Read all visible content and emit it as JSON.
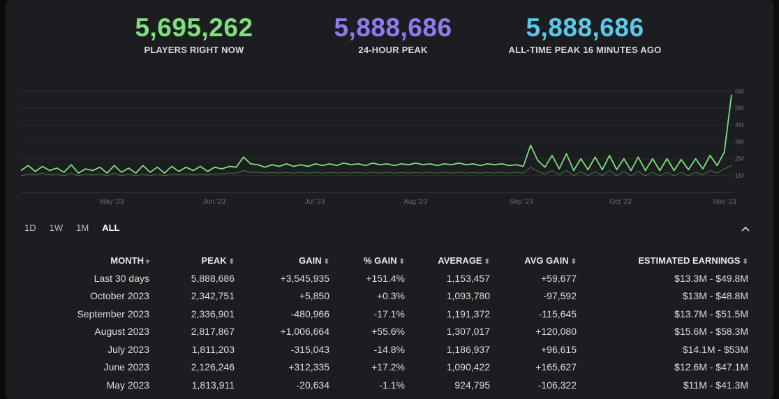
{
  "stats": [
    {
      "value": "5,695,262",
      "label": "PLAYERS RIGHT NOW",
      "color": "#7ee07c"
    },
    {
      "value": "5,888,686",
      "label": "24-HOUR PEAK",
      "color": "#8f7bf0"
    },
    {
      "value": "5,888,686",
      "label": "ALL-TIME PEAK 16 MINUTES AGO",
      "color": "#5cc8ea"
    }
  ],
  "chart_data": {
    "type": "line",
    "y_ticks": [
      "6M",
      "5M",
      "4M",
      "3M",
      "2M",
      "1M"
    ],
    "x_ticks": [
      "May '23",
      "Jun '23",
      "Jul '23",
      "Aug '23",
      "Sep '23",
      "Oct '23",
      "Nov '23"
    ],
    "ylim": [
      0,
      6200000
    ],
    "grid": true,
    "line_color": "#7ee07c",
    "series": [
      {
        "values": [
          1300000,
          1600000,
          1250000,
          1550000,
          1300000,
          1450000,
          1200000,
          1650000,
          1150000,
          1400000,
          1300000,
          1500000,
          1150000,
          1600000,
          1200000,
          1450000,
          1150000,
          1600000,
          1200000,
          1500000,
          1150000,
          1550000,
          1250000,
          1500000,
          1300000,
          1550000,
          1250000,
          1500000,
          1400000,
          1550000,
          1500000,
          2100000,
          1700000,
          1650000,
          1500000,
          1650000,
          1550000,
          1700000,
          1550000,
          1650000,
          1550000,
          1700000,
          1600000,
          1700000,
          1600000,
          1750000,
          1650000,
          1700000,
          1600000,
          1750000,
          1650000,
          1700000,
          1600000,
          1700000,
          1650000,
          1750000,
          1650000,
          1700000,
          1600000,
          1700000,
          1650000,
          1750000,
          1650000,
          1700000,
          1600000,
          1700000,
          1650000,
          1700000,
          1600000,
          1650000,
          1550000,
          2800000,
          1900000,
          1500000,
          2200000,
          1400000,
          2300000,
          1300000,
          2000000,
          1350000,
          2100000,
          1350000,
          2200000,
          1350000,
          2000000,
          1300000,
          2100000,
          1300000,
          2000000,
          1300000,
          2000000,
          1300000,
          1950000,
          1350000,
          2000000,
          1400000,
          2200000,
          1600000,
          2400000,
          5800000
        ]
      },
      {
        "values": [
          1000000,
          1100000,
          1050000,
          1150000,
          1050000,
          1100000,
          1000000,
          1150000,
          1000000,
          1100000,
          1050000,
          1100000,
          1000000,
          1150000,
          1000000,
          1100000,
          1000000,
          1100000,
          1000000,
          1100000,
          1000000,
          1100000,
          1050000,
          1100000,
          1050000,
          1100000,
          1050000,
          1100000,
          1100000,
          1150000,
          1150000,
          1300000,
          1200000,
          1200000,
          1150000,
          1200000,
          1150000,
          1200000,
          1150000,
          1200000,
          1150000,
          1200000,
          1150000,
          1200000,
          1150000,
          1200000,
          1150000,
          1200000,
          1150000,
          1200000,
          1150000,
          1200000,
          1150000,
          1200000,
          1150000,
          1200000,
          1150000,
          1200000,
          1150000,
          1200000,
          1150000,
          1200000,
          1150000,
          1200000,
          1150000,
          1200000,
          1150000,
          1200000,
          1150000,
          1200000,
          1150000,
          1500000,
          1250000,
          1100000,
          1300000,
          1050000,
          1300000,
          1000000,
          1250000,
          1000000,
          1250000,
          1000000,
          1300000,
          1000000,
          1250000,
          1000000,
          1250000,
          1000000,
          1200000,
          1000000,
          1200000,
          1000000,
          1200000,
          1000000,
          1200000,
          1050000,
          1300000,
          1150000,
          1400000,
          1600000
        ]
      }
    ]
  },
  "ranges": [
    "1D",
    "1W",
    "1M",
    "ALL"
  ],
  "active_range": "ALL",
  "table": {
    "headers": [
      "MONTH",
      "PEAK",
      "GAIN",
      "% GAIN",
      "AVERAGE",
      "AVG GAIN",
      "ESTIMATED EARNINGS"
    ],
    "rows": [
      {
        "month": "Last 30 days",
        "peak": "5,888,686",
        "gain": "+3,545,935",
        "gain_sign": "pos",
        "pct": "+151.4%",
        "pct_sign": "pos",
        "avg": "1,153,457",
        "avg_gain": "+59,677",
        "avg_gain_sign": "pos",
        "earnings": "$13.3M - $49.8M"
      },
      {
        "month": "October 2023",
        "peak": "2,342,751",
        "gain": "+5,850",
        "gain_sign": "pos",
        "pct": "+0.3%",
        "pct_sign": "pos",
        "avg": "1,093,780",
        "avg_gain": "-97,592",
        "avg_gain_sign": "neg",
        "earnings": "$13M - $48.8M"
      },
      {
        "month": "September 2023",
        "peak": "2,336,901",
        "gain": "-480,966",
        "gain_sign": "neg",
        "pct": "-17.1%",
        "pct_sign": "neg",
        "avg": "1,191,372",
        "avg_gain": "-115,645",
        "avg_gain_sign": "neg",
        "earnings": "$13.7M - $51.5M"
      },
      {
        "month": "August 2023",
        "peak": "2,817,867",
        "gain": "+1,006,664",
        "gain_sign": "pos",
        "pct": "+55.6%",
        "pct_sign": "pos",
        "avg": "1,307,017",
        "avg_gain": "+120,080",
        "avg_gain_sign": "pos",
        "earnings": "$15.6M - $58.3M"
      },
      {
        "month": "July 2023",
        "peak": "1,811,203",
        "gain": "-315,043",
        "gain_sign": "neg",
        "pct": "-14.8%",
        "pct_sign": "neg",
        "avg": "1,186,937",
        "avg_gain": "+96,615",
        "avg_gain_sign": "pos",
        "earnings": "$14.1M - $53M"
      },
      {
        "month": "June 2023",
        "peak": "2,126,246",
        "gain": "+312,335",
        "gain_sign": "pos",
        "pct": "+17.2%",
        "pct_sign": "pos",
        "avg": "1,090,422",
        "avg_gain": "+165,627",
        "avg_gain_sign": "pos",
        "earnings": "$12.6M - $47.1M"
      },
      {
        "month": "May 2023",
        "peak": "1,813,911",
        "gain": "-20,634",
        "gain_sign": "neg",
        "pct": "-1.1%",
        "pct_sign": "neg",
        "avg": "924,795",
        "avg_gain": "-106,322",
        "avg_gain_sign": "neg",
        "earnings": "$11M - $41.3M"
      }
    ]
  }
}
